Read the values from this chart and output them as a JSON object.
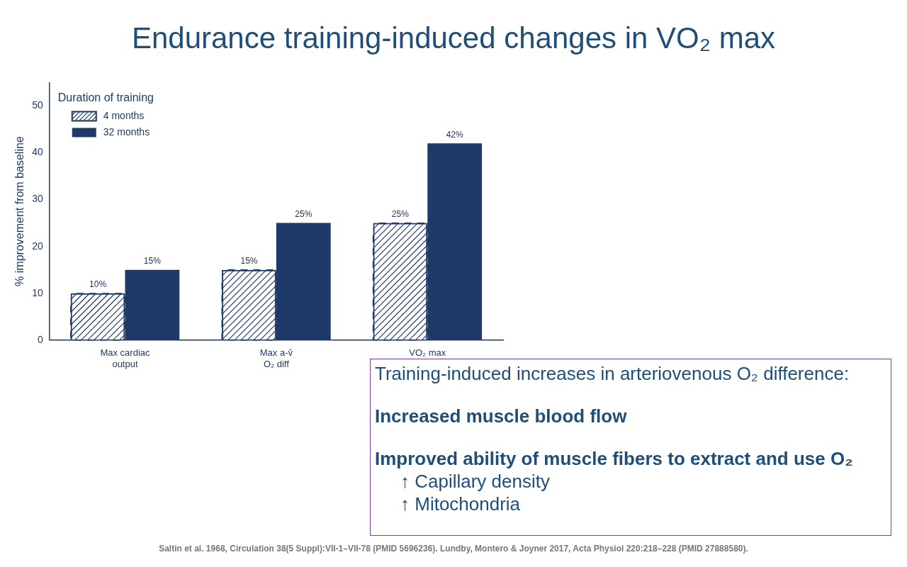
{
  "chart_data": {
    "type": "bar",
    "title": "Endurance training-induced changes in VO₂ max",
    "categories": [
      "Max cardiac output",
      "Max a-v̄ O₂ diff",
      "VO₂ max"
    ],
    "ylabel": "% improvement from baseline",
    "ylim": [
      0,
      55
    ],
    "yticks": [
      0,
      10,
      20,
      30,
      40,
      50
    ],
    "grid": false,
    "legend": "top left",
    "legend_title": "Duration of training",
    "series": [
      {
        "name": "4 months",
        "color": "#1f3a68",
        "values": [
          10,
          15,
          25
        ],
        "value_labels": [
          "10%",
          "15%",
          "25%"
        ]
      },
      {
        "name": "32 months",
        "color": "#1f3a68",
        "values": [
          15,
          25,
          42
        ],
        "value_labels": [
          "15%",
          "25%",
          "42%"
        ]
      }
    ],
    "annotations": [
      "Training-induced increases in arteriovenous O₂ difference:",
      "Increased muscle blood flow",
      "Improved ability of muscle fibers to extract and use O₂",
      "↑ Capillary density",
      "↑ Mitochondria",
      "Saltin et al. 1968, Circulation 38(5 Suppl):VII-1–VII-78 (PMID 5696236). Lundby, Montero & Joyner 2017, Acta Physiol 220:218–228 (PMID 27888580)."
    ]
  }
}
